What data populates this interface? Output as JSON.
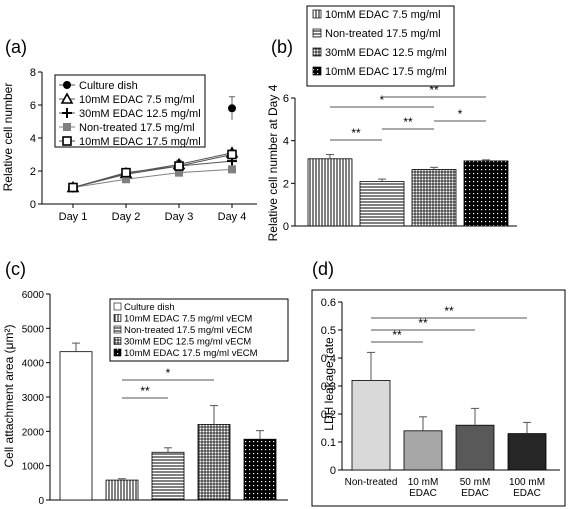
{
  "chart_data": [
    {
      "panel": "(a)",
      "type": "line",
      "ylabel": "Relative cell number",
      "ylim": [
        0,
        8
      ],
      "yticks": [
        0,
        2,
        4,
        6,
        8
      ],
      "categories": [
        "Day 1",
        "Day 2",
        "Day 3",
        "Day 4"
      ],
      "legend_position": "top-right",
      "series": [
        {
          "name": "Culture dish",
          "marker": "filled-circle",
          "color": "#000000",
          "values": [
            null,
            null,
            null,
            5.8
          ],
          "errors": [
            null,
            null,
            null,
            0.7
          ]
        },
        {
          "name": "10mM EDAC 7.5 mg/ml",
          "marker": "open-triangle",
          "color": "#000000",
          "values": [
            1.0,
            1.85,
            2.4,
            3.1
          ],
          "errors": [
            0,
            0.1,
            0.25,
            0.15
          ]
        },
        {
          "name": "30mM EDAC 12.5 mg/ml",
          "marker": "plus",
          "color": "#000000",
          "values": [
            1.0,
            1.8,
            2.3,
            2.6
          ],
          "errors": [
            0,
            0.15,
            0.2,
            0.3
          ]
        },
        {
          "name": "Non-treated 17.5 mg/ml",
          "marker": "filled-square",
          "color": "#808080",
          "values": [
            1.0,
            1.5,
            1.9,
            2.1
          ],
          "errors": [
            0,
            0.1,
            0.15,
            0.1
          ]
        },
        {
          "name": "10mM EDAC 17.5 mg/ml",
          "marker": "open-square",
          "color": "#000000",
          "values": [
            1.0,
            1.9,
            2.3,
            3.0
          ],
          "errors": [
            0,
            0.1,
            0.2,
            0.1
          ]
        }
      ]
    },
    {
      "panel": "(b)",
      "type": "bar",
      "ylabel": "Relative cell number at Day 4",
      "ylim": [
        0,
        6
      ],
      "yticks": [
        0,
        2,
        4,
        6
      ],
      "categories": [
        "10mM EDAC 7.5 mg/ml",
        "Non-treated 17.5 mg/ml",
        "30mM EDAC 12.5 mg/ml",
        "10mM EDAC 17.5 mg/ml"
      ],
      "values": [
        3.15,
        2.08,
        2.65,
        3.05
      ],
      "errors": [
        0.2,
        0.12,
        0.1,
        0.05
      ],
      "legend_position": "above",
      "significance": [
        {
          "from": 0,
          "to": 1,
          "label": "**"
        },
        {
          "from": 0,
          "to": 2,
          "label": "*"
        },
        {
          "from": 1,
          "to": 3,
          "label": "**"
        },
        {
          "from": 1,
          "to": 2,
          "label": "**"
        },
        {
          "from": 2,
          "to": 3,
          "label": "*"
        }
      ]
    },
    {
      "panel": "(c)",
      "type": "bar",
      "ylabel": "Cell attachment area (μm²)",
      "ylim": [
        0,
        6000
      ],
      "yticks": [
        0,
        1000,
        2000,
        3000,
        4000,
        5000,
        6000
      ],
      "categories": [
        "Culture dish",
        "10mM EDAC 7.5 mg/ml vECM",
        "Non-treated 17.5 mg/ml vECM",
        "30mM EDC 12.5 mg/ml vECM",
        "10mM EDAC 17.5 mg/ml vECM"
      ],
      "values": [
        4320,
        580,
        1390,
        2200,
        1770
      ],
      "errors": [
        250,
        40,
        130,
        550,
        250
      ],
      "legend_position": "top-right",
      "significance": [
        {
          "from": 1,
          "to": 3,
          "label": "*"
        },
        {
          "from": 1,
          "to": 2,
          "label": "**"
        }
      ]
    },
    {
      "panel": "(d)",
      "type": "bar",
      "ylabel": "LDH leakage rate",
      "ylim": [
        0,
        0.6
      ],
      "yticks": [
        0,
        0.1,
        0.2,
        0.3,
        0.4,
        0.5,
        0.6
      ],
      "categories": [
        "Non-treated",
        "10 mM EDAC",
        "50 mM EDAC",
        "100 mM EDAC"
      ],
      "values": [
        0.32,
        0.14,
        0.16,
        0.13
      ],
      "errors": [
        0.1,
        0.05,
        0.06,
        0.04
      ],
      "colors": [
        "#d9d9d9",
        "#a6a6a6",
        "#595959",
        "#262626"
      ],
      "significance": [
        {
          "from": 0,
          "to": 3,
          "label": "**"
        },
        {
          "from": 0,
          "to": 2,
          "label": "**"
        },
        {
          "from": 0,
          "to": 1,
          "label": "**"
        }
      ]
    }
  ]
}
